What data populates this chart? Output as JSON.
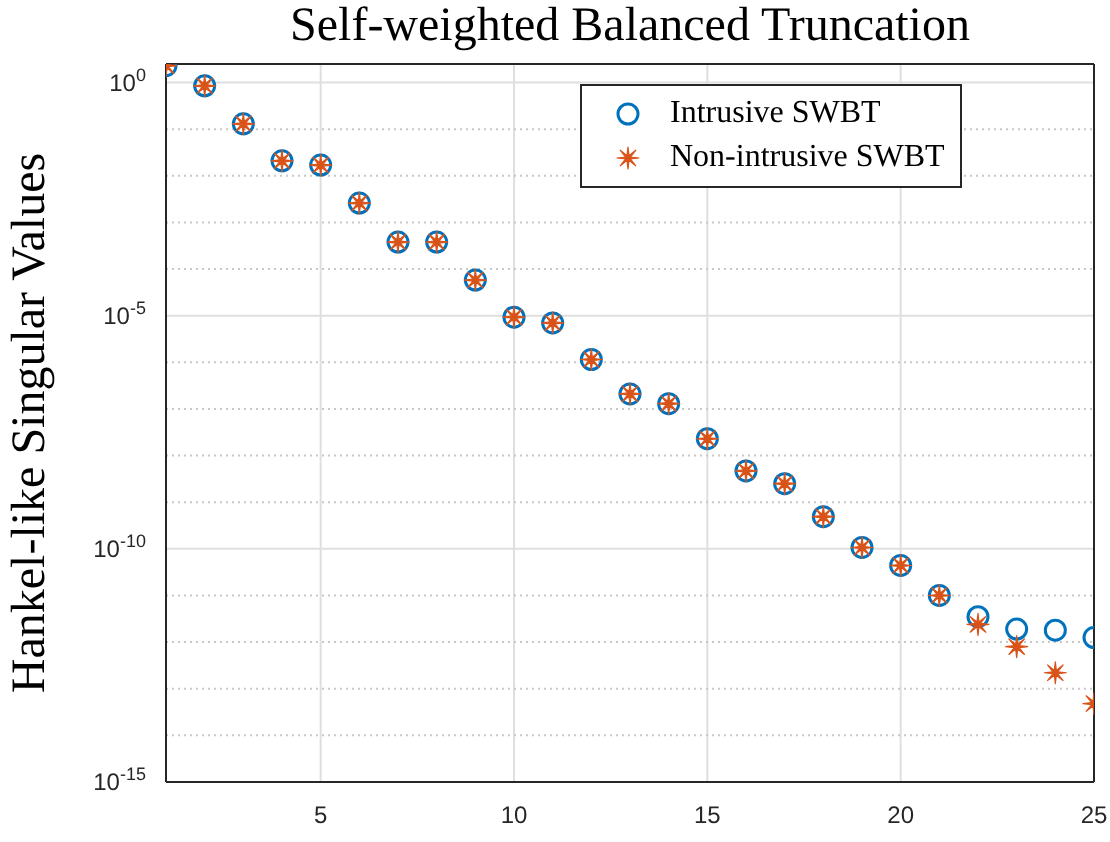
{
  "chart_data": {
    "type": "scatter",
    "title": "Self-weighted Balanced Truncation",
    "ylabel": "Hankel-like Singular Values",
    "x": [
      1,
      2,
      3,
      4,
      5,
      6,
      7,
      8,
      9,
      10,
      11,
      12,
      13,
      14,
      15,
      16,
      17,
      18,
      19,
      20,
      21,
      22,
      23,
      24,
      25
    ],
    "series": [
      {
        "name": "Intrusive SWBT",
        "color": "#0072bd",
        "marker": "circle",
        "values": [
          2.3,
          0.85,
          0.13,
          0.021,
          0.017,
          0.0026,
          0.00038,
          0.00038,
          5.8e-05,
          9.3e-06,
          7e-06,
          1.15e-06,
          2.1e-07,
          1.3e-07,
          2.3e-08,
          4.7e-09,
          2.5e-09,
          4.9e-10,
          1.07e-10,
          4.4e-11,
          1e-11,
          3.5e-12,
          1.9e-12,
          1.8e-12,
          1.25e-12
        ]
      },
      {
        "name": "Non-intrusive SWBT",
        "color": "#d95319",
        "marker": "star",
        "values": [
          2.3,
          0.85,
          0.13,
          0.021,
          0.017,
          0.0026,
          0.00038,
          0.00038,
          5.8e-05,
          9.3e-06,
          7e-06,
          1.15e-06,
          2.1e-07,
          1.3e-07,
          2.3e-08,
          4.7e-09,
          2.5e-09,
          4.9e-10,
          1.07e-10,
          4.4e-11,
          1e-11,
          2.4e-12,
          8e-13,
          2.2e-13,
          4.8e-14
        ]
      }
    ],
    "xlim": [
      1,
      25
    ],
    "xticks": [
      5,
      10,
      15,
      20,
      25
    ],
    "ylim": [
      1e-15,
      2.5
    ],
    "log": "y",
    "yticks": [
      {
        "value": 1e-15,
        "label": "10$^{-15}$"
      },
      {
        "value": 1e-14,
        "label": null
      },
      {
        "value": 1e-13,
        "label": null
      },
      {
        "value": 1e-12,
        "label": null
      },
      {
        "value": 1e-11,
        "label": null
      },
      {
        "value": 1e-10,
        "label": "10$^{-10}$"
      },
      {
        "value": 1e-09,
        "label": null
      },
      {
        "value": 1e-08,
        "label": null
      },
      {
        "value": 1e-07,
        "label": null
      },
      {
        "value": 1e-06,
        "label": null
      },
      {
        "value": 1e-05,
        "label": "10$^{-5}$"
      },
      {
        "value": 0.0001,
        "label": null
      },
      {
        "value": 0.001,
        "label": null
      },
      {
        "value": 0.01,
        "label": null
      },
      {
        "value": 0.1,
        "label": null
      },
      {
        "value": 1,
        "label": "10$^{0}$"
      }
    ],
    "grid": true,
    "legend": "top right"
  }
}
